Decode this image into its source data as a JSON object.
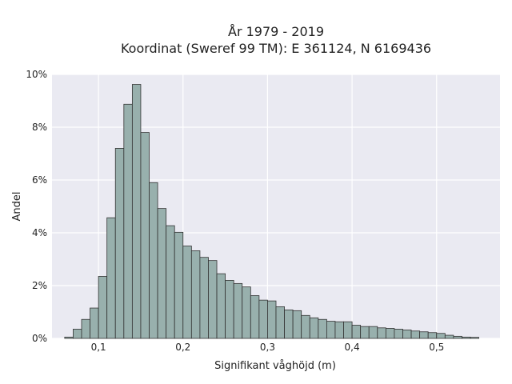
{
  "chart_data": {
    "type": "bar",
    "title_lines": [
      "År 1979 - 2019",
      "Koordinat (Sweref 99 TM): E 361124, N 6169436"
    ],
    "xlabel": "Signifikant våghöjd (m)",
    "ylabel": "Andel",
    "xlim": [
      0.045,
      0.575
    ],
    "ylim": [
      0,
      10
    ],
    "x_ticks": [
      0.1,
      0.2,
      0.3,
      0.4,
      0.5
    ],
    "x_tick_labels": [
      "0,1",
      "0,2",
      "0,3",
      "0,4",
      "0,5"
    ],
    "y_ticks": [
      0,
      2,
      4,
      6,
      8,
      10
    ],
    "y_tick_labels": [
      "0%",
      "2%",
      "4%",
      "6%",
      "8%",
      "10%"
    ],
    "grid": true,
    "bin_start": 0.06,
    "bin_width": 0.01,
    "values": [
      0.05,
      0.35,
      0.72,
      1.15,
      2.35,
      4.57,
      7.2,
      8.87,
      9.62,
      7.8,
      5.9,
      4.92,
      4.27,
      4.02,
      3.5,
      3.32,
      3.07,
      2.95,
      2.45,
      2.2,
      2.08,
      1.95,
      1.62,
      1.45,
      1.42,
      1.2,
      1.08,
      1.05,
      0.87,
      0.78,
      0.72,
      0.65,
      0.63,
      0.63,
      0.5,
      0.45,
      0.45,
      0.4,
      0.38,
      0.35,
      0.32,
      0.28,
      0.25,
      0.22,
      0.19,
      0.12,
      0.08,
      0.05,
      0.04
    ],
    "colors": {
      "bar": "#98b0ad",
      "edge": "#333333",
      "plot_bg": "#eaeaf2",
      "grid": "#ffffff"
    }
  }
}
